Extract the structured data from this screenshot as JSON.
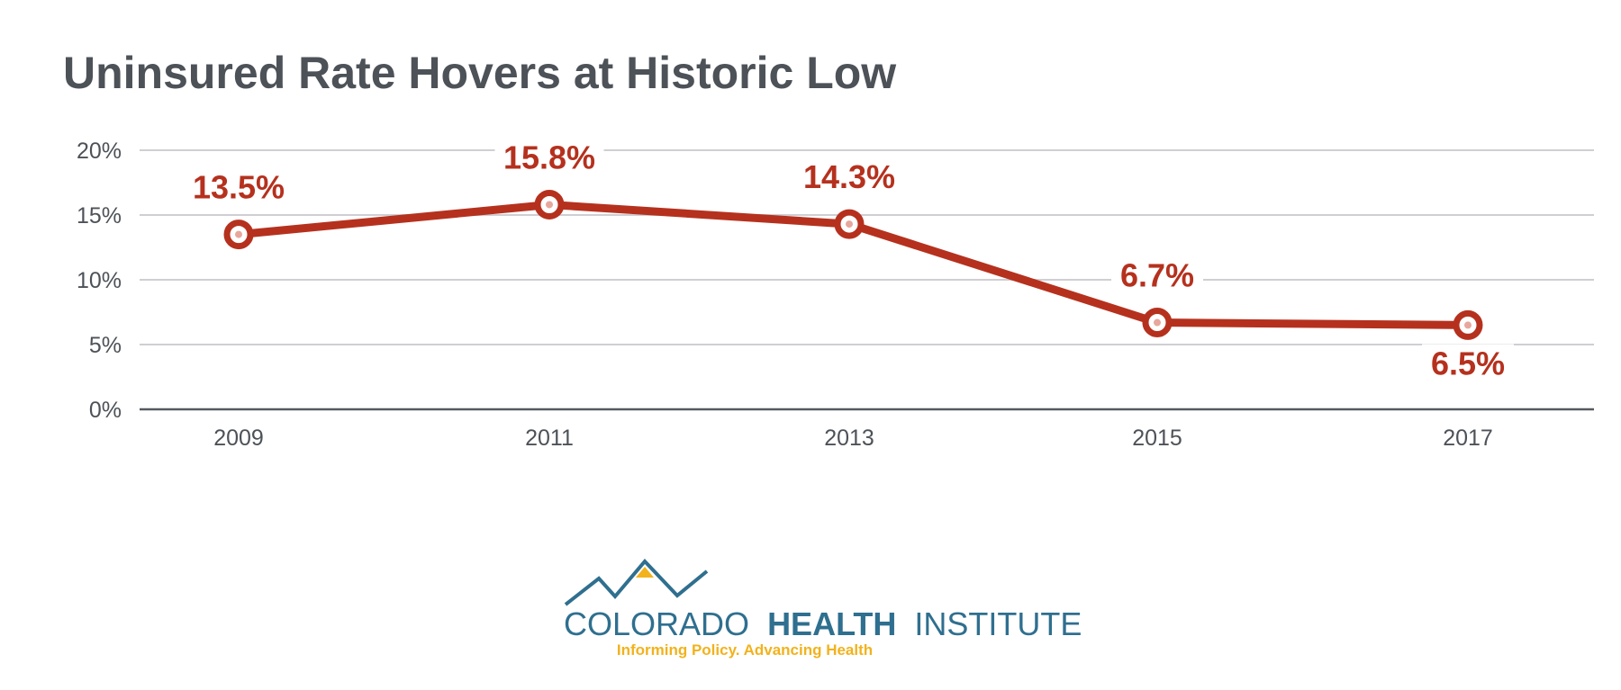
{
  "chart_data": {
    "type": "line",
    "title": "Uninsured Rate Hovers at Historic Low",
    "categories": [
      "2009",
      "2011",
      "2013",
      "2015",
      "2017"
    ],
    "series": [
      {
        "values": [
          13.5,
          15.8,
          14.3,
          6.7,
          6.5
        ]
      }
    ],
    "data_labels": [
      "13.5%",
      "15.8%",
      "14.3%",
      "6.7%",
      "6.5%"
    ],
    "y_ticks": [
      0,
      5,
      10,
      15,
      20
    ],
    "y_tick_labels": [
      "0%",
      "5%",
      "10%",
      "15%",
      "20%"
    ],
    "ylim": [
      0,
      20
    ],
    "grid": true,
    "line_color": "#b5311e",
    "grid_color": "#cfcfd3",
    "text_color": "#4d5258"
  },
  "logo": {
    "name_part1": "COLORADO",
    "name_part2": "HEALTH",
    "name_part3": "INSTITUTE",
    "tagline": "Informing Policy. Advancing Health",
    "brand_color": "#2f6f8f",
    "accent_color": "#f2b21c"
  }
}
